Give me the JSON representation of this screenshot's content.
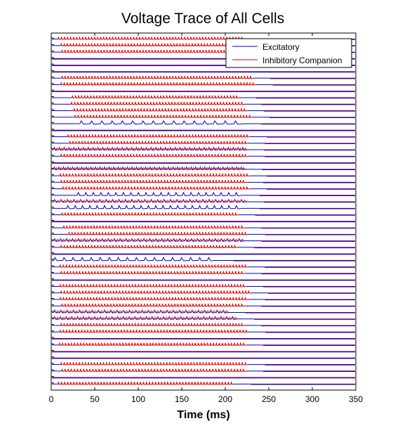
{
  "chart_data": {
    "type": "line",
    "title": "Voltage Trace of All Cells",
    "xlabel": "Time (ms)",
    "ylabel": "",
    "xlim": [
      0,
      350
    ],
    "xticks": [
      0,
      50,
      100,
      150,
      200,
      250,
      300,
      350
    ],
    "grid": false,
    "legend_position": "top-right",
    "series": [
      {
        "name": "Excitatory",
        "color": "#0000cc"
      },
      {
        "name": "Inhibitory Companion",
        "color": "#e00000"
      }
    ],
    "rows": [
      {
        "s": 8,
        "e": 222,
        "n": 62,
        "t": "i"
      },
      {
        "s": 11,
        "e": 228,
        "n": 62,
        "t": "i"
      },
      {
        "s": 12,
        "e": 205,
        "n": 56,
        "t": "i"
      },
      {
        "s": 0,
        "e": 0,
        "n": 0,
        "t": "f"
      },
      {
        "s": 0,
        "e": 0,
        "n": 0,
        "t": "f"
      },
      {
        "s": 0,
        "e": 0,
        "n": 0,
        "t": "f"
      },
      {
        "s": 12,
        "e": 232,
        "n": 64,
        "t": "i"
      },
      {
        "s": 11,
        "e": 235,
        "n": 64,
        "t": "i"
      },
      {
        "s": 0,
        "e": 0,
        "n": 0,
        "t": "f"
      },
      {
        "s": 24,
        "e": 216,
        "n": 55,
        "t": "i"
      },
      {
        "s": 23,
        "e": 222,
        "n": 57,
        "t": "i"
      },
      {
        "s": 26,
        "e": 225,
        "n": 57,
        "t": "i"
      },
      {
        "s": 27,
        "e": 231,
        "n": 58,
        "t": "i"
      },
      {
        "s": 33,
        "e": 222,
        "n": 16,
        "t": "e"
      },
      {
        "s": 0,
        "e": 0,
        "n": 0,
        "t": "f"
      },
      {
        "s": 19,
        "e": 228,
        "n": 60,
        "t": "i"
      },
      {
        "s": 21,
        "e": 226,
        "n": 59,
        "t": "i"
      },
      {
        "s": 3,
        "e": 225,
        "n": 40,
        "t": "m"
      },
      {
        "s": 11,
        "e": 226,
        "n": 62,
        "t": "i"
      },
      {
        "s": 0,
        "e": 0,
        "n": 0,
        "t": "f"
      },
      {
        "s": 3,
        "e": 223,
        "n": 42,
        "t": "m"
      },
      {
        "s": 10,
        "e": 228,
        "n": 62,
        "t": "i"
      },
      {
        "s": 11,
        "e": 224,
        "n": 61,
        "t": "i"
      },
      {
        "s": 13,
        "e": 228,
        "n": 60,
        "t": "i"
      },
      {
        "s": 30,
        "e": 220,
        "n": 22,
        "t": "e"
      },
      {
        "s": 3,
        "e": 225,
        "n": 30,
        "t": "m"
      },
      {
        "s": 18,
        "e": 220,
        "n": 24,
        "t": "e"
      },
      {
        "s": 12,
        "e": 215,
        "n": 58,
        "t": "i"
      },
      {
        "s": 0,
        "e": 0,
        "n": 0,
        "t": "f"
      },
      {
        "s": 14,
        "e": 222,
        "n": 60,
        "t": "i"
      },
      {
        "s": 20,
        "e": 226,
        "n": 59,
        "t": "i"
      },
      {
        "s": 3,
        "e": 222,
        "n": 32,
        "t": "m"
      },
      {
        "s": 11,
        "e": 214,
        "n": 58,
        "t": "i"
      },
      {
        "s": 0,
        "e": 0,
        "n": 0,
        "t": "f"
      },
      {
        "s": 3,
        "e": 190,
        "n": 18,
        "t": "e"
      },
      {
        "s": 10,
        "e": 226,
        "n": 62,
        "t": "i"
      },
      {
        "s": 11,
        "e": 222,
        "n": 60,
        "t": "i"
      },
      {
        "s": 0,
        "e": 0,
        "n": 0,
        "t": "f"
      },
      {
        "s": 10,
        "e": 224,
        "n": 62,
        "t": "i"
      },
      {
        "s": 11,
        "e": 230,
        "n": 62,
        "t": "i"
      },
      {
        "s": 10,
        "e": 226,
        "n": 62,
        "t": "i"
      },
      {
        "s": 12,
        "e": 222,
        "n": 60,
        "t": "i"
      },
      {
        "s": 3,
        "e": 204,
        "n": 28,
        "t": "m"
      },
      {
        "s": 3,
        "e": 214,
        "n": 32,
        "t": "m"
      },
      {
        "s": 11,
        "e": 222,
        "n": 62,
        "t": "i"
      },
      {
        "s": 10,
        "e": 227,
        "n": 62,
        "t": "i"
      },
      {
        "s": 0,
        "e": 0,
        "n": 0,
        "t": "f"
      },
      {
        "s": 9,
        "e": 224,
        "n": 62,
        "t": "i"
      },
      {
        "s": 0,
        "e": 0,
        "n": 0,
        "t": "f"
      },
      {
        "s": 0,
        "e": 0,
        "n": 0,
        "t": "f"
      },
      {
        "s": 11,
        "e": 226,
        "n": 62,
        "t": "i"
      },
      {
        "s": 12,
        "e": 224,
        "n": 60,
        "t": "i"
      },
      {
        "s": 0,
        "e": 0,
        "n": 0,
        "t": "f"
      },
      {
        "s": 8,
        "e": 210,
        "n": 58,
        "t": "i"
      }
    ]
  }
}
